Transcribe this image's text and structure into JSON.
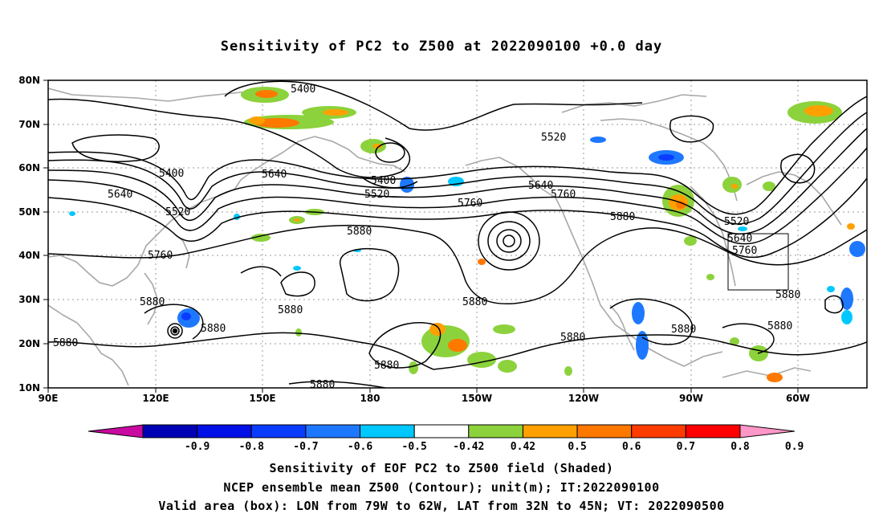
{
  "title": "Sensitivity of PC2 to Z500 at 2022090100 +0.0 day",
  "map": {
    "lat_ticks": [
      "80N",
      "70N",
      "60N",
      "50N",
      "40N",
      "30N",
      "20N",
      "10N"
    ],
    "lon_ticks": [
      "90E",
      "120E",
      "150E",
      "180",
      "150W",
      "120W",
      "90W",
      "60W"
    ],
    "contour_labels": [
      "5400",
      "5400",
      "5400",
      "5520",
      "5520",
      "5520",
      "5520",
      "5640",
      "5640",
      "5640",
      "5640",
      "5760",
      "5760",
      "5760",
      "5760",
      "5760",
      "5880",
      "5880",
      "5880",
      "5880",
      "5880",
      "5880",
      "5880",
      "5880",
      "5880",
      "5880",
      "5880",
      "5880",
      "5880",
      "5880"
    ],
    "box": {
      "lon_from": "79W",
      "lon_to": "62W",
      "lat_from": "32N",
      "lat_to": "45N"
    }
  },
  "colorbar": {
    "labels": [
      "-0.9",
      "-0.8",
      "-0.7",
      "-0.6",
      "-0.5",
      "-0.42",
      "0.42",
      "0.5",
      "0.6",
      "0.7",
      "0.8",
      "0.9"
    ],
    "colors": [
      "#c80aa0",
      "#0000b4",
      "#0010e6",
      "#0a3cff",
      "#1e78ff",
      "#00c8ff",
      "#ffffff",
      "#8cd23c",
      "#ffa000",
      "#ff7800",
      "#ff3c00",
      "#ff0000",
      "#ff96c8"
    ]
  },
  "caption": {
    "line1": "Sensitivity of EOF PC2 to Z500 field (Shaded)",
    "line2": "NCEP ensemble mean Z500 (Contour); unit(m); IT:2022090100",
    "line3": "Valid area (box): LON from 79W to 62W, LAT from 32N to 45N; VT: 2022090500"
  }
}
